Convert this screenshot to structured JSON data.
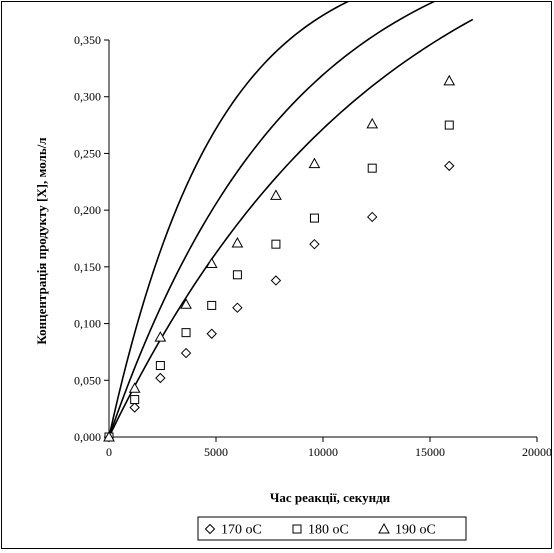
{
  "chart_data": {
    "type": "scatter",
    "title": "",
    "xlabel": "Час реакції, секунди",
    "ylabel": "Концентрація продукту [X], моль/л",
    "xlim": [
      0,
      20000
    ],
    "ylim": [
      0,
      0.35
    ],
    "xticks": [
      0,
      5000,
      10000,
      15000,
      20000
    ],
    "xtick_labels": [
      "0",
      "5000",
      "10000",
      "15000",
      "20000"
    ],
    "yticks": [
      0,
      0.05,
      0.1,
      0.15,
      0.2,
      0.25,
      0.3,
      0.35
    ],
    "ytick_labels": [
      "0,000",
      "0,050",
      "0,100",
      "0,150",
      "0,200",
      "0,250",
      "0,300",
      "0,350"
    ],
    "grid": false,
    "legend_position": "bottom",
    "trendlines": true,
    "series": [
      {
        "name": "170 oC",
        "marker": "diamond",
        "x": [
          0,
          1200,
          2400,
          3600,
          4800,
          6000,
          7800,
          9600,
          12300,
          15900
        ],
        "y": [
          0.0,
          0.026,
          0.052,
          0.074,
          0.091,
          0.114,
          0.138,
          0.17,
          0.194,
          0.239
        ],
        "fit_k": 3.92e-05,
        "fit_cinf": 0.5
      },
      {
        "name": "180 oC",
        "marker": "square",
        "x": [
          0,
          1200,
          2400,
          3600,
          4800,
          6000,
          7800,
          9600,
          12300,
          15900
        ],
        "y": [
          0.0,
          0.033,
          0.063,
          0.092,
          0.116,
          0.143,
          0.17,
          0.193,
          0.237,
          0.275
        ],
        "fit_k": 5.45e-05,
        "fit_cinf": 0.46
      },
      {
        "name": "190 oC",
        "marker": "triangle",
        "x": [
          0,
          1200,
          2400,
          3600,
          4800,
          6000,
          7800,
          9600,
          12300,
          15900
        ],
        "y": [
          0.0,
          0.043,
          0.088,
          0.117,
          0.153,
          0.171,
          0.213,
          0.241,
          0.276,
          0.314
        ],
        "fit_k": 8.6e-05,
        "fit_cinf": 0.43
      }
    ]
  }
}
